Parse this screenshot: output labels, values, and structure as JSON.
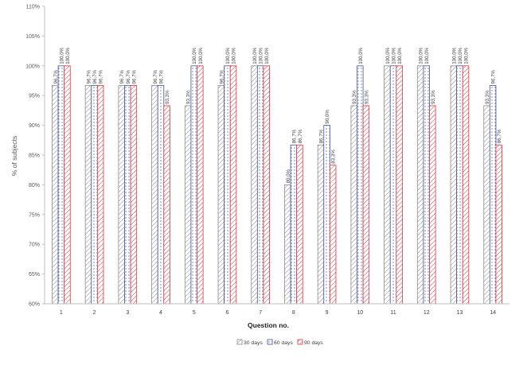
{
  "chart_data": {
    "type": "bar",
    "title": "",
    "xlabel": "Question no.",
    "ylabel": "% of subjects",
    "ylim": [
      60,
      110
    ],
    "ytick_step": 5,
    "ytick_labels": [
      "60%",
      "65%",
      "70%",
      "75%",
      "80%",
      "85%",
      "90%",
      "95%",
      "100%",
      "105%",
      "110%"
    ],
    "categories": [
      "1",
      "2",
      "3",
      "4",
      "5",
      "6",
      "7",
      "8",
      "9",
      "10",
      "11",
      "12",
      "13",
      "14"
    ],
    "grid": false,
    "legend_position": "bottom",
    "series": [
      {
        "name": "30 days",
        "color": "#8c8c8c",
        "pattern": "diagonal-hatch",
        "values": [
          96.7,
          96.7,
          96.7,
          96.7,
          93.3,
          96.7,
          100.0,
          80.0,
          86.7,
          93.3,
          100.0,
          100.0,
          100.0,
          93.3
        ],
        "labels": [
          "96,7%",
          "96,7%",
          "96,7%",
          "96,7%",
          "93,3%",
          "96,7%",
          "100,0%",
          "80,0%",
          "86,7%",
          "93,3%",
          "100,0%",
          "100,0%",
          "100,0%",
          "93,3%"
        ]
      },
      {
        "name": "60 days",
        "color": "#3f4fa8",
        "pattern": "dots",
        "values": [
          100.0,
          96.7,
          96.7,
          96.7,
          100.0,
          100.0,
          100.0,
          86.7,
          90.0,
          100.0,
          100.0,
          100.0,
          100.0,
          96.7
        ],
        "labels": [
          "100,0%",
          "96,7%",
          "96,7%",
          "96,7%",
          "100,0%",
          "100,0%",
          "100,0%",
          "86,7%",
          "90,0%",
          "100,0%",
          "100,0%",
          "100,0%",
          "100,0%",
          "96,7%"
        ]
      },
      {
        "name": "90 days",
        "color": "#d9363e",
        "pattern": "diagonal-hatch",
        "values": [
          100.0,
          96.7,
          96.7,
          93.3,
          100.0,
          100.0,
          100.0,
          86.7,
          83.3,
          93.3,
          100.0,
          93.3,
          100.0,
          86.7
        ],
        "labels": [
          "100,0%",
          "96,7%",
          "96,7%",
          "93,3%",
          "100,0%",
          "100,0%",
          "100,0%",
          "86,7%",
          "83,3%",
          "93,3%",
          "100,0%",
          "93,3%",
          "100,0%",
          "86,7%"
        ]
      }
    ]
  }
}
